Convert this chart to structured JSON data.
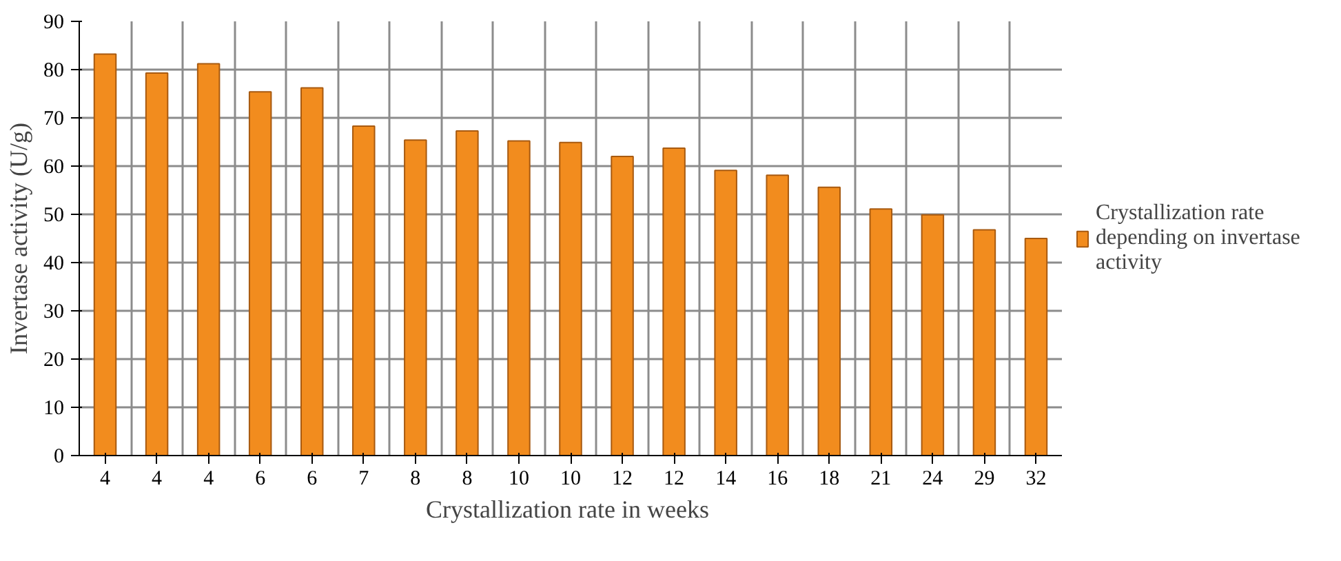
{
  "chart_data": {
    "type": "bar",
    "xlabel": "Crystallization  rate in weeks",
    "ylabel": "Invertase activity (U/g)",
    "categories": [
      "4",
      "4",
      "4",
      "6",
      "6",
      "7",
      "8",
      "8",
      "10",
      "10",
      "12",
      "12",
      "14",
      "16",
      "18",
      "21",
      "24",
      "29",
      "32"
    ],
    "series": [
      {
        "name": "Crystallization rate depending on invertase activity",
        "color": "#f28c1e",
        "values": [
          83.2,
          79.3,
          81.2,
          75.4,
          76.2,
          68.3,
          65.4,
          67.3,
          65.2,
          64.9,
          62.0,
          63.7,
          59.1,
          58.1,
          55.6,
          51.1,
          49.9,
          46.8,
          45.0
        ]
      }
    ],
    "ylim": [
      0,
      90
    ],
    "yticks": [
      0,
      10,
      20,
      30,
      40,
      50,
      60,
      70,
      80,
      90
    ],
    "grid": true,
    "legend": "right"
  }
}
